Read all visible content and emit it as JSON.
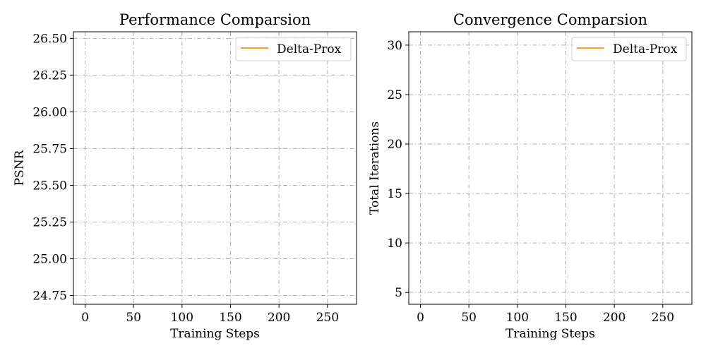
{
  "chart_data": [
    {
      "type": "line",
      "title": "Performance Comparsion",
      "xlabel": "Training Steps",
      "ylabel": "PSNR",
      "xlim": [
        -12,
        280
      ],
      "ylim": [
        24.69,
        26.545
      ],
      "xticks": [
        0,
        50,
        100,
        150,
        200,
        250
      ],
      "xtick_labels": [
        "0",
        "50",
        "100",
        "150",
        "200",
        "250"
      ],
      "yticks": [
        24.75,
        25.0,
        25.25,
        25.5,
        25.75,
        26.0,
        26.25,
        26.5
      ],
      "ytick_labels": [
        "24.75",
        "25.00",
        "25.25",
        "25.50",
        "25.75",
        "26.00",
        "26.25",
        "26.50"
      ],
      "grid": true,
      "legend_position": "upper right",
      "series": [
        {
          "name": "Delta-Prox",
          "color": "#f5a623",
          "x": [],
          "y": []
        }
      ]
    },
    {
      "type": "line",
      "title": "Convergence Comparsion",
      "xlabel": "Training Steps",
      "ylabel": "Total Iterations",
      "xlim": [
        -12,
        280
      ],
      "ylim": [
        3.8,
        31.35
      ],
      "xticks": [
        0,
        50,
        100,
        150,
        200,
        250
      ],
      "xtick_labels": [
        "0",
        "50",
        "100",
        "150",
        "200",
        "250"
      ],
      "yticks": [
        5,
        10,
        15,
        20,
        25,
        30
      ],
      "ytick_labels": [
        "5",
        "10",
        "15",
        "20",
        "25",
        "30"
      ],
      "grid": true,
      "legend_position": "upper right",
      "series": [
        {
          "name": "Delta-Prox",
          "color": "#f5a623",
          "x": [],
          "y": []
        }
      ]
    }
  ]
}
